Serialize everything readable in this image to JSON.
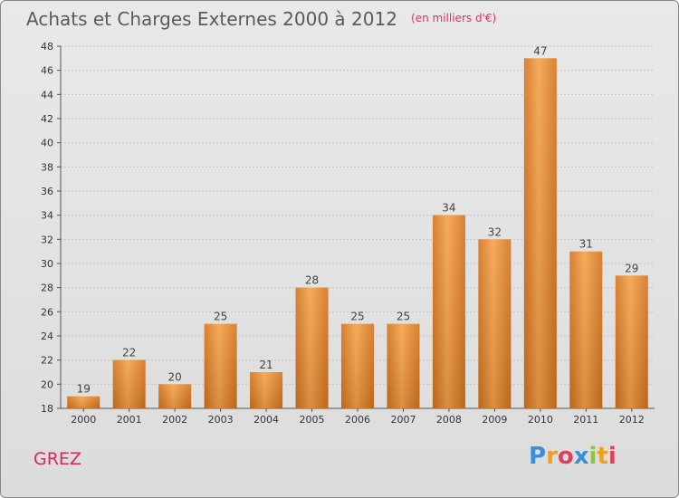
{
  "header": {
    "title": "Achats et Charges Externes 2000 à 2012",
    "subtitle": "(en milliers d'€)"
  },
  "footer": {
    "commune": "GREZ",
    "logo_letters": [
      "P",
      "r",
      "o",
      "x",
      "i",
      "t",
      "i"
    ],
    "logo_colors": [
      "#3a8fd8",
      "#f0a020",
      "#e04060",
      "#3a8fd8",
      "#8cc63f",
      "#f0a020",
      "#e04060"
    ]
  },
  "chart_data": {
    "type": "bar",
    "categories": [
      "2000",
      "2001",
      "2002",
      "2003",
      "2004",
      "2005",
      "2006",
      "2007",
      "2008",
      "2009",
      "2010",
      "2011",
      "2012"
    ],
    "values": [
      19,
      22,
      20,
      25,
      21,
      28,
      25,
      25,
      34,
      32,
      47,
      31,
      29
    ],
    "title": "Achats et Charges Externes 2000 à 2012",
    "subtitle": "(en milliers d'€)",
    "ylim": [
      18,
      48
    ],
    "yticks": [
      18,
      20,
      22,
      24,
      26,
      28,
      30,
      32,
      34,
      36,
      38,
      40,
      42,
      44,
      46,
      48
    ],
    "grid": true,
    "bar_color_light": "#f5a24a",
    "bar_color_dark": "#d4731e"
  }
}
